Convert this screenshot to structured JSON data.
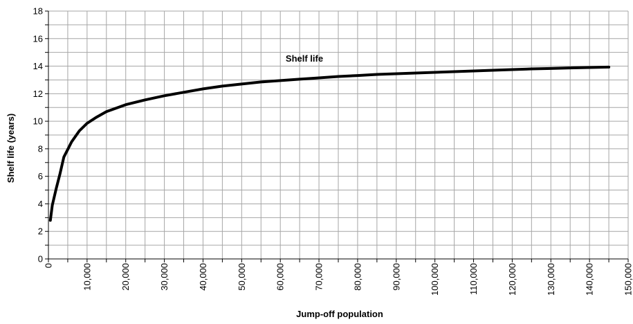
{
  "chart_data": {
    "type": "line",
    "title": "",
    "xlabel": "Jump-off population",
    "ylabel": "Shelf life (years)",
    "xlim": [
      0,
      150000
    ],
    "ylim": [
      0,
      18
    ],
    "x_ticks": [
      0,
      5000,
      10000,
      15000,
      20000,
      25000,
      30000,
      35000,
      40000,
      45000,
      50000,
      55000,
      60000,
      65000,
      70000,
      75000,
      80000,
      85000,
      90000,
      95000,
      100000,
      105000,
      110000,
      115000,
      120000,
      125000,
      130000,
      135000,
      140000,
      145000,
      150000
    ],
    "x_tick_labels": [
      "0",
      "",
      "10,000",
      "",
      "20,000",
      "",
      "30,000",
      "",
      "40,000",
      "",
      "50,000",
      "",
      "60,000",
      "",
      "70,000",
      "",
      "80,000",
      "",
      "90,000",
      "",
      "100,000",
      "",
      "110,000",
      "",
      "120,000",
      "",
      "130,000",
      "",
      "140,000",
      "",
      "150,000"
    ],
    "y_ticks": [
      0,
      1,
      2,
      3,
      4,
      5,
      6,
      7,
      8,
      9,
      10,
      11,
      12,
      13,
      14,
      15,
      16,
      17,
      18
    ],
    "y_tick_labels": [
      "0",
      "",
      "2",
      "",
      "4",
      "",
      "6",
      "",
      "8",
      "",
      "10",
      "",
      "12",
      "",
      "14",
      "",
      "16",
      "",
      "18"
    ],
    "grid": true,
    "series": [
      {
        "name": "Shelf life",
        "color": "#000000",
        "x": [
          500,
          1000,
          2000,
          3000,
          4000,
          5000,
          6000,
          8000,
          10000,
          12500,
          15000,
          17500,
          20000,
          25000,
          30000,
          35000,
          40000,
          45000,
          50000,
          55000,
          60000,
          65000,
          70000,
          75000,
          80000,
          85000,
          90000,
          95000,
          100000,
          105000,
          110000,
          115000,
          120000,
          125000,
          130000,
          135000,
          140000,
          145000
        ],
        "y": [
          2.8,
          3.9,
          5.1,
          6.2,
          7.4,
          7.95,
          8.5,
          9.3,
          9.85,
          10.3,
          10.7,
          10.95,
          11.2,
          11.55,
          11.85,
          12.1,
          12.35,
          12.55,
          12.7,
          12.85,
          12.95,
          13.05,
          13.15,
          13.25,
          13.32,
          13.4,
          13.45,
          13.5,
          13.55,
          13.6,
          13.65,
          13.7,
          13.75,
          13.8,
          13.83,
          13.87,
          13.9,
          13.93
        ]
      }
    ]
  }
}
